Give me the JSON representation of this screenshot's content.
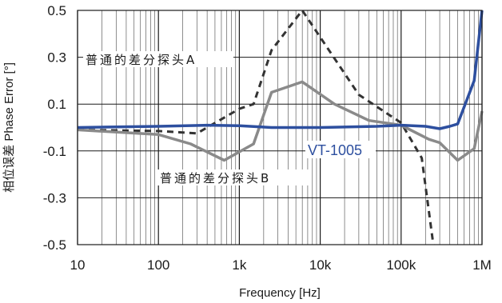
{
  "chart_data": {
    "type": "line",
    "xlabel": "Frequency [Hz]",
    "ylabel": "相位误差 Phase Error [°]",
    "x_scale": "log",
    "xlim": [
      10,
      1000000
    ],
    "ylim": [
      -0.5,
      0.5
    ],
    "x_ticks": [
      {
        "value": 10,
        "label": "10"
      },
      {
        "value": 100,
        "label": "100"
      },
      {
        "value": 1000,
        "label": "1k"
      },
      {
        "value": 10000,
        "label": "10k"
      },
      {
        "value": 100000,
        "label": "100k"
      },
      {
        "value": 1000000,
        "label": "1M"
      }
    ],
    "y_ticks": [
      {
        "value": 0.5,
        "label": "0.5"
      },
      {
        "value": 0.3,
        "label": "0.3"
      },
      {
        "value": 0.1,
        "label": "0.1"
      },
      {
        "value": -0.1,
        "label": "-0.1"
      },
      {
        "value": -0.3,
        "label": "-0.3"
      },
      {
        "value": -0.5,
        "label": "-0.5"
      }
    ],
    "grid": true,
    "series": [
      {
        "name": "普通的差分探头A",
        "color": "#333333",
        "style": "dashed",
        "points": [
          [
            10,
            -0.01
          ],
          [
            100,
            -0.015
          ],
          [
            300,
            -0.025
          ],
          [
            1000,
            0.08
          ],
          [
            1500,
            0.1
          ],
          [
            2500,
            0.33
          ],
          [
            6000,
            0.5
          ],
          [
            30000,
            0.14
          ],
          [
            100000,
            0.02
          ],
          [
            180000,
            -0.13
          ],
          [
            250000,
            -0.5
          ]
        ]
      },
      {
        "name": "普通的差分探头B",
        "color": "#8a8a8a",
        "style": "solid",
        "points": [
          [
            10,
            -0.01
          ],
          [
            100,
            -0.03
          ],
          [
            250,
            -0.07
          ],
          [
            650,
            -0.14
          ],
          [
            1500,
            -0.07
          ],
          [
            2500,
            0.15
          ],
          [
            6000,
            0.195
          ],
          [
            15000,
            0.1
          ],
          [
            40000,
            0.03
          ],
          [
            100000,
            0.01
          ],
          [
            220000,
            -0.05
          ],
          [
            300000,
            -0.065
          ],
          [
            500000,
            -0.14
          ],
          [
            800000,
            -0.09
          ],
          [
            1000000,
            0.07
          ]
        ]
      },
      {
        "name": "VT-1005",
        "color": "#2d4f9f",
        "style": "solid",
        "points": [
          [
            10,
            0.0
          ],
          [
            100,
            0.005
          ],
          [
            400,
            0.01
          ],
          [
            1000,
            0.008
          ],
          [
            2500,
            0.0
          ],
          [
            10000,
            0.0
          ],
          [
            50000,
            0.005
          ],
          [
            100000,
            0.01
          ],
          [
            200000,
            0.005
          ],
          [
            300000,
            -0.005
          ],
          [
            400000,
            0.005
          ],
          [
            500000,
            0.015
          ],
          [
            800000,
            0.2
          ],
          [
            1000000,
            0.5
          ]
        ]
      }
    ],
    "annotations": [
      {
        "text": "普通的差分探头A",
        "series": 0
      },
      {
        "text": "普通的差分探头B",
        "series": 1
      },
      {
        "text": "VT-1005",
        "series": 2
      }
    ]
  }
}
